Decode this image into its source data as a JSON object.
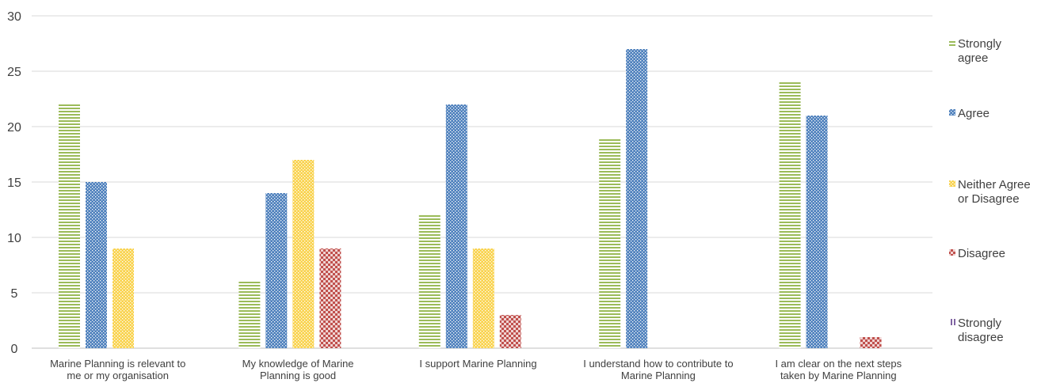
{
  "chart_data": {
    "type": "bar",
    "categories": [
      [
        "Marine Planning is relevant to",
        "me or my organisation"
      ],
      [
        "My knowledge of Marine",
        "Planning is good"
      ],
      [
        "I support Marine Planning"
      ],
      [
        "I understand how to contribute to",
        "Marine Planning"
      ],
      [
        "I am clear on the next steps",
        "taken by Marine Planning"
      ]
    ],
    "series": [
      {
        "name": "Strongly agree",
        "legend_lines": [
          "Strongly",
          "agree"
        ],
        "color": "#9BBB59",
        "pattern": "horizontal-stripes",
        "values": [
          22,
          6,
          12,
          19,
          24
        ]
      },
      {
        "name": "Agree",
        "legend_lines": [
          "Agree"
        ],
        "color": "#4F81BD",
        "pattern": "dots",
        "values": [
          15,
          14,
          22,
          27,
          21
        ]
      },
      {
        "name": "Neither Agree or Disagree",
        "legend_lines": [
          "Neither Agree",
          "or Disagree"
        ],
        "color": "#F9D34F",
        "pattern": "dots",
        "values": [
          9,
          17,
          9,
          0,
          0
        ]
      },
      {
        "name": "Disagree",
        "legend_lines": [
          "Disagree"
        ],
        "color": "#C0504D",
        "pattern": "checks",
        "values": [
          0,
          9,
          3,
          0,
          1
        ]
      },
      {
        "name": "Strongly disagree",
        "legend_lines": [
          "Strongly",
          "disagree"
        ],
        "color": "#8064A2",
        "pattern": "vertical-stripes",
        "values": [
          0,
          0,
          0,
          0,
          0
        ]
      }
    ],
    "ylim": [
      0,
      30
    ],
    "yticks": [
      "0",
      "5",
      "10",
      "15",
      "20",
      "25",
      "30"
    ],
    "grid": true,
    "legend_position": "right",
    "title": "",
    "xlabel": "",
    "ylabel": ""
  }
}
